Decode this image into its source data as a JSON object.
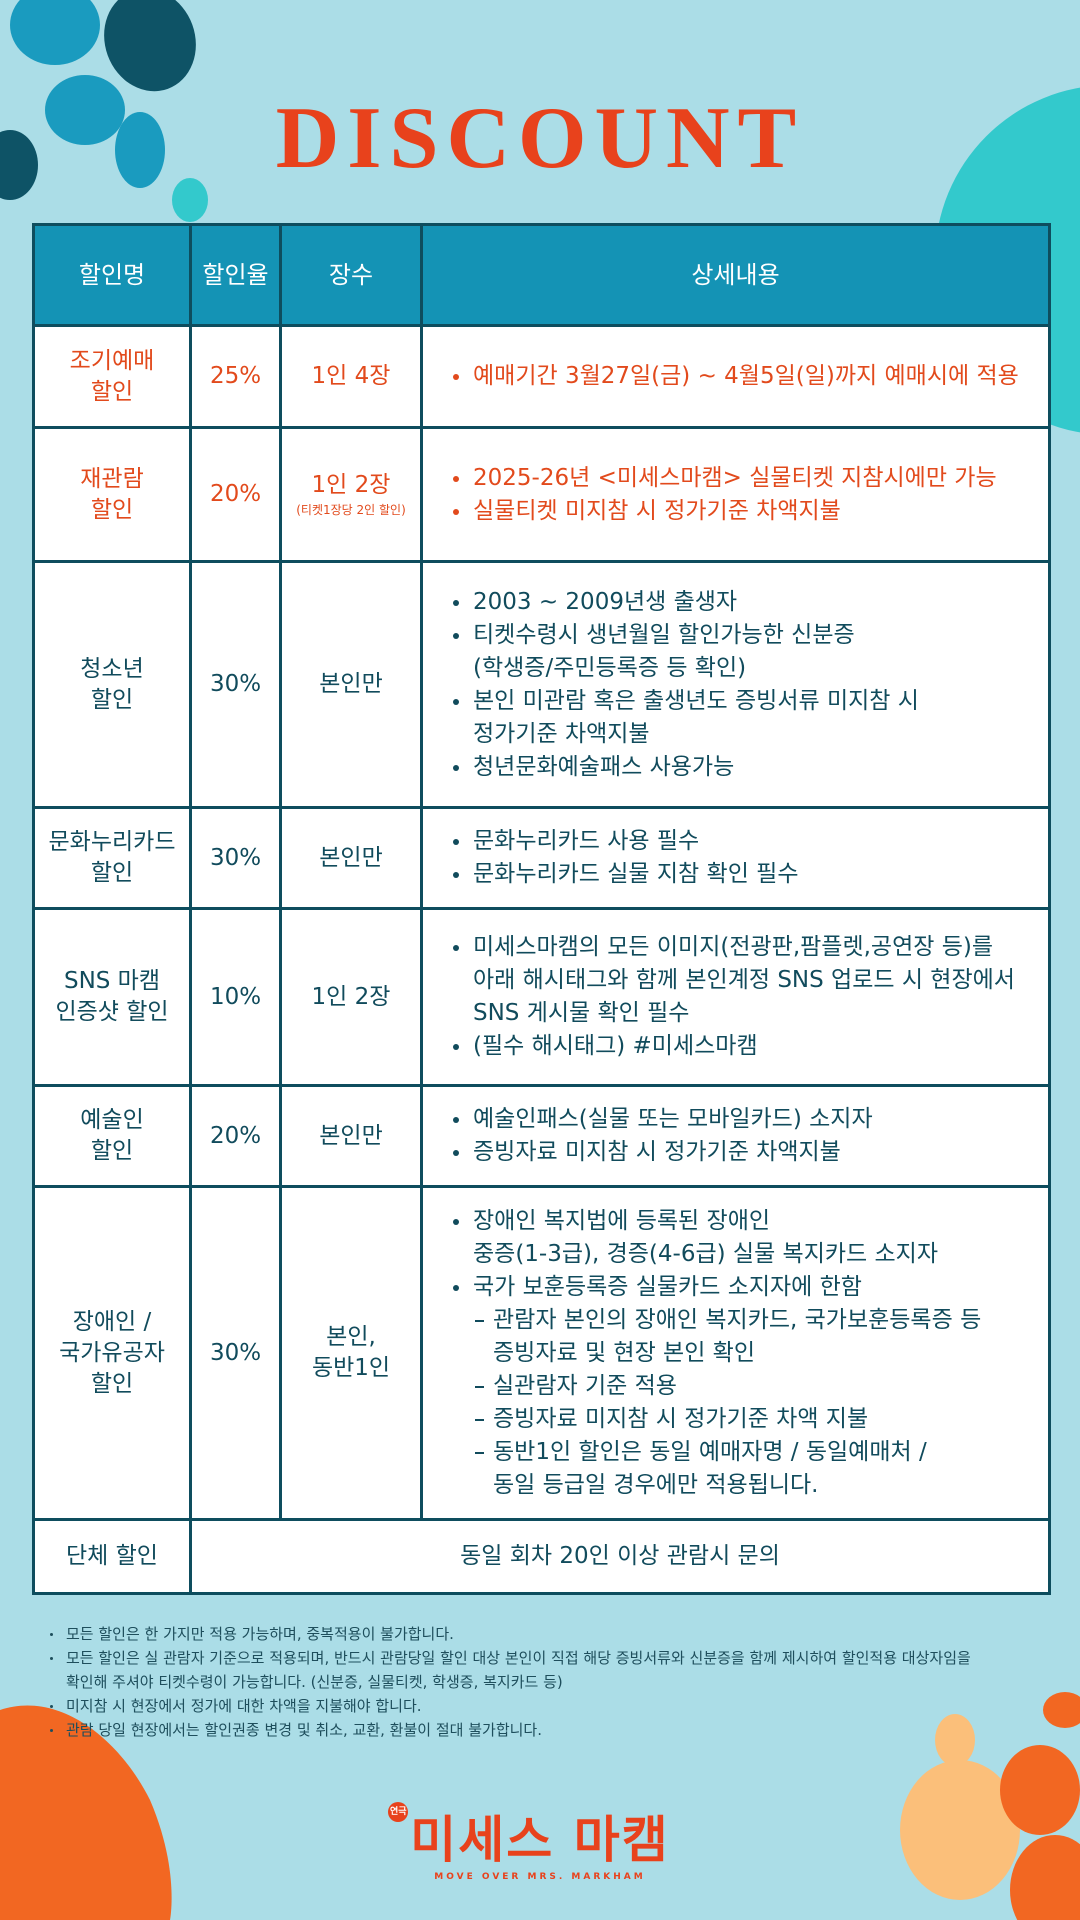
{
  "title": "DISCOUNT",
  "table": {
    "header": [
      "할인명",
      "할인율",
      "장수",
      "상세내용"
    ],
    "rows": [
      {
        "highlight": true,
        "name": [
          "조기예매",
          "할인"
        ],
        "rate": "25%",
        "count": [
          "1인 4장"
        ],
        "details": [
          {
            "lines": [
              "예매기간 3월27일(금) ~ 4월5일(일)까지 예매시에 적용"
            ]
          }
        ]
      },
      {
        "highlight": true,
        "name": [
          "재관람",
          "할인"
        ],
        "rate": "20%",
        "count": [
          "1인 2장"
        ],
        "count_note": "(티켓1장당 2인 할인)",
        "details": [
          {
            "lines": [
              "2025-26년 <미세스마캠> 실물티켓 지참시에만 가능"
            ]
          },
          {
            "lines": [
              "실물티켓 미지참 시 정가기준 차액지불"
            ]
          }
        ]
      },
      {
        "highlight": false,
        "name": [
          "청소년",
          "할인"
        ],
        "rate": "30%",
        "count": [
          "본인만"
        ],
        "details": [
          {
            "lines": [
              "2003 ~ 2009년생 출생자"
            ]
          },
          {
            "lines": [
              "티켓수령시 생년월일 할인가능한 신분증",
              "(학생증/주민등록증 등 확인)"
            ]
          },
          {
            "lines": [
              "본인 미관람 혹은 출생년도 증빙서류 미지참 시",
              "정가기준 차액지불"
            ]
          },
          {
            "lines": [
              "청년문화예술패스 사용가능"
            ]
          }
        ]
      },
      {
        "highlight": false,
        "name": [
          "문화누리카드",
          "할인"
        ],
        "rate": "30%",
        "count": [
          "본인만"
        ],
        "details": [
          {
            "lines": [
              "문화누리카드 사용 필수"
            ]
          },
          {
            "lines": [
              "문화누리카드 실물 지참 확인 필수"
            ]
          }
        ]
      },
      {
        "highlight": false,
        "name": [
          "SNS 마캠",
          "인증샷 할인"
        ],
        "rate": "10%",
        "count": [
          "1인 2장"
        ],
        "details": [
          {
            "lines": [
              "미세스마캠의 모든 이미지(전광판,팜플렛,공연장 등)를",
              "아래 해시태그와 함께 본인계정 SNS 업로드 시 현장에서",
              "SNS 게시물 확인 필수"
            ]
          },
          {
            "lines": [
              "(필수 해시태그) #미세스마캠"
            ]
          }
        ]
      },
      {
        "highlight": false,
        "name": [
          "예술인",
          "할인"
        ],
        "rate": "20%",
        "count": [
          "본인만"
        ],
        "details": [
          {
            "lines": [
              "예술인패스(실물 또는 모바일카드) 소지자"
            ]
          },
          {
            "lines": [
              "증빙자료 미지참 시 정가기준 차액지불"
            ]
          }
        ]
      },
      {
        "highlight": false,
        "name": [
          "장애인 /",
          "국가유공자",
          "할인"
        ],
        "rate": "30%",
        "count": [
          "본인,",
          "동반1인"
        ],
        "details": [
          {
            "lines": [
              "장애인 복지법에 등록된 장애인",
              "중증(1-3급), 경증(4-6급) 실물 복지카드 소지자"
            ]
          },
          {
            "lines": [
              "국가 보훈등록증 실물카드 소지자에 한함"
            ],
            "sub": [
              {
                "lines": [
                  "관람자 본인의 장애인 복지카드, 국가보훈등록증 등",
                  "증빙자료 및 현장 본인 확인"
                ]
              },
              {
                "lines": [
                  "실관람자 기준 적용"
                ]
              },
              {
                "lines": [
                  "증빙자료 미지참 시 정가기준 차액 지불"
                ]
              },
              {
                "lines": [
                  "동반1인 할인은 동일 예매자명 / 동일예매처 /",
                  "동일 등급일 경우에만 적용됩니다."
                ]
              }
            ]
          }
        ]
      }
    ],
    "group": {
      "name": "단체 할인",
      "text": "동일 회차 20인 이상 관람시 문의"
    }
  },
  "notes": [
    [
      "모든 할인은 한 가지만 적용 가능하며, 중복적용이 불가합니다."
    ],
    [
      "모든 할인은 실 관람자 기준으로 적용되며, 반드시 관람당일 할인 대상 본인이 직접 해당 증빙서류와 신분증을 함께 제시하여 할인적용 대상자임을",
      "확인해 주셔야 티켓수령이 가능합니다. (신분증, 실물티켓, 학생증, 복지카드 등)"
    ],
    [
      "미지참 시 현장에서 정가에 대한 차액을 지불해야 합니다."
    ],
    [
      "관람 당일 현장에서는 할인권종 변경 및 취소, 교환, 환불이 절대 불가합니다."
    ]
  ],
  "logo": {
    "tag": "연극",
    "name": "미세스 마캠",
    "subtitle": "MOVE OVER MRS. MARKHAM"
  }
}
